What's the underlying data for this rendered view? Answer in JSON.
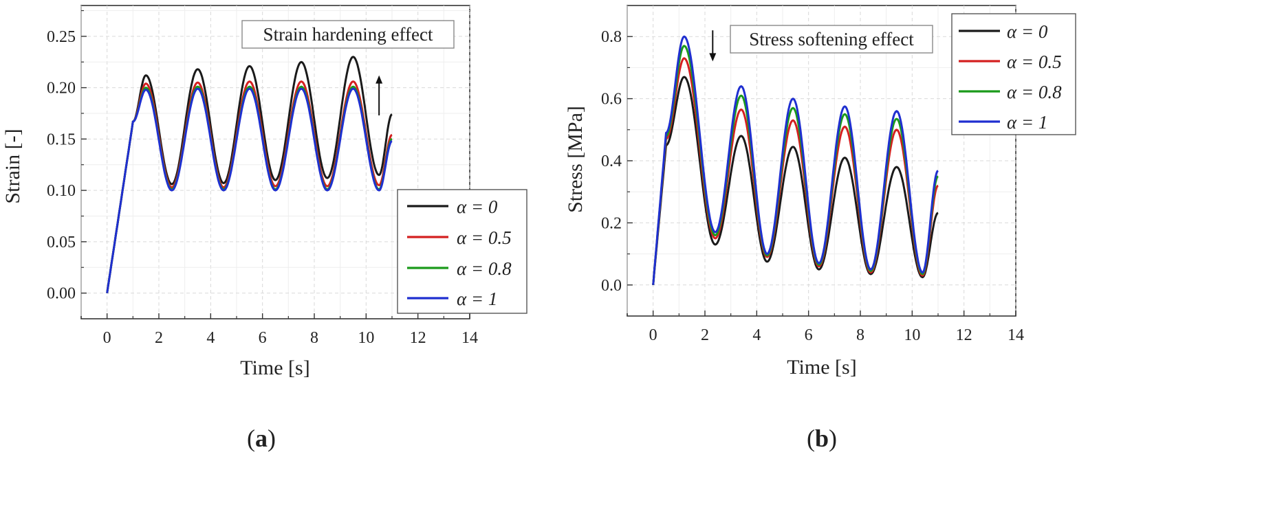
{
  "figure": {
    "panels": [
      "(a)",
      "(b)"
    ],
    "panel_letters": [
      "a",
      "b"
    ]
  },
  "chart_data": [
    {
      "type": "line",
      "panel": "(a)",
      "title": "",
      "xlabel": "Time [s]",
      "ylabel": "Strain [-]",
      "xlim": [
        -1,
        14
      ],
      "ylim": [
        -0.025,
        0.28
      ],
      "xticks": [
        0,
        2,
        4,
        6,
        8,
        10,
        12,
        14
      ],
      "xtick_labels": [
        "0",
        "2",
        "4",
        "6",
        "8",
        "10",
        "12",
        "14"
      ],
      "yticks": [
        0.0,
        0.05,
        0.1,
        0.15,
        0.2,
        0.25
      ],
      "ytick_labels": [
        "0.00",
        "0.05",
        "0.10",
        "0.15",
        "0.20",
        "0.25"
      ],
      "grid": true,
      "legend_position": "lower-right",
      "annotation": {
        "text": "Strain hardening effect",
        "arrow": "up",
        "arrow_x": 10.5,
        "arrow_from": 0.173,
        "arrow_to": 0.212
      },
      "series": [
        {
          "name": "α = 0",
          "color": "#1a1a1a",
          "x": [
            0,
            1.0,
            1.5,
            2.5,
            3.5,
            4.5,
            5.5,
            6.5,
            7.5,
            8.5,
            9.5,
            10.5,
            11.0
          ],
          "values": [
            0.0,
            0.167,
            0.212,
            0.106,
            0.218,
            0.107,
            0.221,
            0.11,
            0.225,
            0.112,
            0.23,
            0.115,
            0.174
          ]
        },
        {
          "name": "α = 0.5",
          "color": "#d42020",
          "x": [
            0,
            1.0,
            1.5,
            2.5,
            3.5,
            4.5,
            5.5,
            6.5,
            7.5,
            8.5,
            9.5,
            10.5,
            11.0
          ],
          "values": [
            0.0,
            0.167,
            0.204,
            0.103,
            0.205,
            0.103,
            0.206,
            0.104,
            0.206,
            0.104,
            0.206,
            0.105,
            0.154
          ]
        },
        {
          "name": "α = 0.8",
          "color": "#1b9a1b",
          "x": [
            0,
            1.0,
            1.5,
            2.5,
            3.5,
            4.5,
            5.5,
            6.5,
            7.5,
            8.5,
            9.5,
            10.5,
            11.0
          ],
          "values": [
            0.0,
            0.167,
            0.2,
            0.101,
            0.201,
            0.101,
            0.201,
            0.101,
            0.201,
            0.101,
            0.201,
            0.101,
            0.15
          ]
        },
        {
          "name": "α = 1",
          "color": "#1f2fd0",
          "x": [
            0,
            1.0,
            1.5,
            2.5,
            3.5,
            4.5,
            5.5,
            6.5,
            7.5,
            8.5,
            9.5,
            10.5,
            11.0
          ],
          "values": [
            0.0,
            0.167,
            0.198,
            0.1,
            0.199,
            0.1,
            0.199,
            0.1,
            0.199,
            0.1,
            0.199,
            0.1,
            0.148
          ]
        }
      ]
    },
    {
      "type": "line",
      "panel": "(b)",
      "title": "",
      "xlabel": "Time [s]",
      "ylabel": "Stress [MPa]",
      "xlim": [
        -1,
        14
      ],
      "ylim": [
        -0.1,
        0.9
      ],
      "xticks": [
        0,
        2,
        4,
        6,
        8,
        10,
        12,
        14
      ],
      "xtick_labels": [
        "0",
        "2",
        "4",
        "6",
        "8",
        "10",
        "12",
        "14"
      ],
      "yticks": [
        0.0,
        0.2,
        0.4,
        0.6,
        0.8
      ],
      "ytick_labels": [
        "0.0",
        "0.2",
        "0.4",
        "0.6",
        "0.8"
      ],
      "grid": true,
      "legend_position": "top-right",
      "annotation": {
        "text": "Stress softening effect",
        "arrow": "down",
        "arrow_x": 2.3,
        "arrow_from": 0.82,
        "arrow_to": 0.72
      },
      "series": [
        {
          "name": "α = 0",
          "color": "#1a1a1a",
          "x": [
            0,
            0.5,
            1.2,
            2.4,
            3.4,
            4.4,
            5.4,
            6.4,
            7.4,
            8.4,
            9.4,
            10.4,
            11.0
          ],
          "values": [
            0.0,
            0.45,
            0.67,
            0.13,
            0.48,
            0.075,
            0.445,
            0.05,
            0.41,
            0.035,
            0.38,
            0.025,
            0.232
          ]
        },
        {
          "name": "α = 0.5",
          "color": "#d42020",
          "x": [
            0,
            0.5,
            1.2,
            2.4,
            3.4,
            4.4,
            5.4,
            6.4,
            7.4,
            8.4,
            9.4,
            10.4,
            11.0
          ],
          "values": [
            0.0,
            0.47,
            0.73,
            0.15,
            0.565,
            0.09,
            0.53,
            0.06,
            0.51,
            0.04,
            0.5,
            0.03,
            0.32
          ]
        },
        {
          "name": "α = 0.8",
          "color": "#1b9a1b",
          "x": [
            0,
            0.5,
            1.2,
            2.4,
            3.4,
            4.4,
            5.4,
            6.4,
            7.4,
            8.4,
            9.4,
            10.4,
            11.0
          ],
          "values": [
            0.0,
            0.48,
            0.77,
            0.16,
            0.61,
            0.095,
            0.57,
            0.065,
            0.55,
            0.045,
            0.535,
            0.035,
            0.35
          ]
        },
        {
          "name": "α = 1",
          "color": "#1f2fd0",
          "x": [
            0,
            0.5,
            1.2,
            2.4,
            3.4,
            4.4,
            5.4,
            6.4,
            7.4,
            8.4,
            9.4,
            10.4,
            11.0
          ],
          "values": [
            0.0,
            0.49,
            0.8,
            0.17,
            0.64,
            0.1,
            0.6,
            0.07,
            0.575,
            0.05,
            0.56,
            0.04,
            0.368
          ]
        }
      ]
    }
  ]
}
